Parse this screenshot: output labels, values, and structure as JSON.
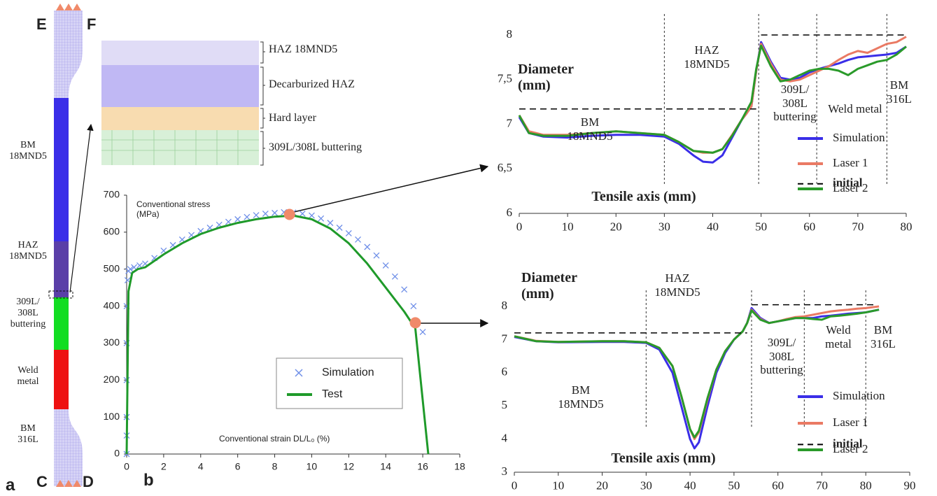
{
  "panel_a": {
    "label": "a",
    "top_left": "E",
    "top_right": "F",
    "bottom_left": "C",
    "bottom_right": "D",
    "zones": [
      "BM 18MND5",
      "HAZ 18MND5",
      "309L/ 308L buttering",
      "Weld metal",
      "BM 316L"
    ],
    "inset_layers": [
      "HAZ 18MND5",
      "Decarburized HAZ",
      "Hard layer",
      "309L/308L buttering"
    ]
  },
  "chart_data": [
    {
      "type": "line",
      "label": "b",
      "y_label": "Conventional stress (MPa)",
      "x_label": "Conventional strain DL/L₀ (%)",
      "xlim": [
        0,
        18
      ],
      "xticks": [
        0,
        2,
        4,
        6,
        8,
        10,
        12,
        14,
        16,
        18
      ],
      "ylim": [
        0,
        700
      ],
      "yticks": [
        0,
        100,
        200,
        300,
        400,
        500,
        600,
        700
      ],
      "legend": "lower center",
      "series": [
        {
          "name": "Simulation",
          "color": "#6f8fe8",
          "mode": "markers",
          "x": [
            0,
            0,
            0,
            0,
            0,
            0,
            0.05,
            0.1,
            0.2,
            0.4,
            0.7,
            1,
            1.5,
            2,
            2.5,
            3,
            3.5,
            4,
            4.5,
            5,
            5.5,
            6,
            6.5,
            7,
            7.5,
            8,
            8.5,
            9,
            9.5,
            10,
            10.5,
            11,
            11.5,
            12,
            12.5,
            13,
            13.5,
            14,
            14.5,
            15,
            15.5,
            16
          ],
          "values": [
            0,
            50,
            100,
            200,
            300,
            400,
            470,
            495,
            500,
            505,
            510,
            515,
            530,
            550,
            565,
            580,
            592,
            603,
            612,
            620,
            628,
            635,
            641,
            646,
            650,
            652,
            654,
            653,
            650,
            645,
            637,
            625,
            612,
            597,
            580,
            560,
            537,
            510,
            480,
            445,
            400,
            330
          ]
        },
        {
          "name": "Test",
          "color": "#1f9a2a",
          "mode": "lines",
          "x": [
            0,
            0.1,
            0.3,
            0.6,
            1,
            2,
            3,
            4,
            5,
            6,
            7,
            8,
            9,
            10,
            11,
            12,
            13,
            14,
            15,
            15.6,
            16.3
          ],
          "values": [
            0,
            440,
            490,
            500,
            505,
            540,
            570,
            595,
            612,
            625,
            635,
            642,
            645,
            635,
            610,
            570,
            515,
            450,
            385,
            340,
            0
          ]
        }
      ],
      "highlights": {
        "color": "#f08a6a",
        "x": [
          8.8,
          15.6
        ],
        "values": [
          648,
          355
        ]
      }
    },
    {
      "type": "line",
      "y_label": "Diameter (mm)",
      "x_label": "Tensile axis (mm)",
      "xlim": [
        0,
        80
      ],
      "xticks": [
        0,
        10,
        20,
        30,
        40,
        50,
        60,
        70,
        80
      ],
      "ylim": [
        6,
        8
      ],
      "yticks": [
        6,
        {
          "value": 6.5,
          "label": "6,5"
        },
        7,
        {
          "value": 7.5,
          "label": "7,5"
        },
        8
      ],
      "region_lines": [
        30,
        49.5,
        61.5,
        76
      ],
      "region_labels": [
        "BM 18MND5",
        "HAZ 18MND5",
        "309L/ 308L buttering",
        "Weld metal",
        "BM 316L"
      ],
      "legend": "lower right",
      "series": [
        {
          "name": "Simulation",
          "color": "#3a2ee8",
          "mode": "lines",
          "x": [
            0,
            2,
            5,
            10,
            15,
            20,
            25,
            30,
            33,
            36,
            38,
            40,
            42,
            44,
            46,
            47,
            48,
            49,
            50,
            52,
            54,
            56,
            58,
            60,
            62,
            64,
            66,
            68,
            70,
            72,
            74,
            76,
            78,
            80
          ],
          "values": [
            7.08,
            6.9,
            6.86,
            6.85,
            6.87,
            6.88,
            6.88,
            6.86,
            6.78,
            6.65,
            6.58,
            6.57,
            6.65,
            6.85,
            7.05,
            7.12,
            7.2,
            7.6,
            7.92,
            7.7,
            7.52,
            7.5,
            7.52,
            7.58,
            7.62,
            7.65,
            7.68,
            7.72,
            7.75,
            7.76,
            7.77,
            7.78,
            7.8,
            7.87
          ]
        },
        {
          "name": "Laser 1",
          "color": "#ea7a64",
          "mode": "lines",
          "x": [
            0,
            2,
            5,
            10,
            15,
            20,
            25,
            30,
            33,
            36,
            38,
            40,
            42,
            44,
            46,
            47,
            48,
            49,
            50,
            52,
            54,
            56,
            58,
            60,
            62,
            64,
            66,
            68,
            70,
            72,
            74,
            76,
            78,
            80
          ],
          "values": [
            7.1,
            6.92,
            6.88,
            6.88,
            6.9,
            6.92,
            6.9,
            6.88,
            6.8,
            6.7,
            6.68,
            6.68,
            6.72,
            6.88,
            7.05,
            7.12,
            7.2,
            7.6,
            7.9,
            7.68,
            7.5,
            7.48,
            7.5,
            7.55,
            7.6,
            7.65,
            7.72,
            7.78,
            7.82,
            7.8,
            7.85,
            7.9,
            7.92,
            7.98
          ]
        },
        {
          "name": "Laser 2",
          "color": "#2a9a2a",
          "mode": "lines",
          "x": [
            0,
            2,
            5,
            10,
            15,
            20,
            25,
            30,
            33,
            36,
            38,
            40,
            42,
            44,
            46,
            47,
            48,
            49,
            50,
            52,
            54,
            56,
            58,
            60,
            62,
            64,
            66,
            68,
            70,
            72,
            74,
            76,
            78,
            80
          ],
          "values": [
            7.1,
            6.9,
            6.87,
            6.87,
            6.9,
            6.92,
            6.9,
            6.88,
            6.8,
            6.7,
            6.69,
            6.68,
            6.72,
            6.87,
            7.05,
            7.15,
            7.25,
            7.62,
            7.88,
            7.65,
            7.48,
            7.5,
            7.55,
            7.6,
            7.62,
            7.62,
            7.6,
            7.55,
            7.62,
            7.66,
            7.7,
            7.72,
            7.78,
            7.87
          ]
        },
        {
          "name": "initial",
          "color": "#000000",
          "mode": "dashed",
          "x": [
            0,
            49,
            49.5,
            50,
            80
          ],
          "values": [
            7.17,
            7.17,
            null,
            8.0,
            8.0
          ]
        }
      ]
    },
    {
      "type": "line",
      "y_label": "Diameter (mm)",
      "x_label": "Tensile axis (mm)",
      "xlim": [
        0,
        90
      ],
      "xticks": [
        0,
        10,
        20,
        30,
        40,
        50,
        60,
        70,
        80,
        90
      ],
      "ylim": [
        3,
        8
      ],
      "yticks": [
        3,
        4,
        5,
        6,
        7,
        8
      ],
      "region_lines": [
        30,
        54,
        66,
        80
      ],
      "region_labels": [
        "BM 18MND5",
        "HAZ 18MND5",
        "309L/ 308L buttering",
        "Weld metal",
        "BM 316L"
      ],
      "legend": "lower right",
      "series": [
        {
          "name": "Simulation",
          "color": "#3a2ee8",
          "mode": "lines",
          "x": [
            0,
            5,
            10,
            20,
            25,
            30,
            33,
            36,
            38,
            40,
            41,
            42,
            44,
            46,
            48,
            50,
            52,
            53,
            54,
            56,
            58,
            60,
            62,
            64,
            66,
            68,
            70,
            72,
            74,
            76,
            78,
            80,
            83
          ],
          "values": [
            7.08,
            6.95,
            6.92,
            6.93,
            6.93,
            6.9,
            6.7,
            6.0,
            5.0,
            4.0,
            3.72,
            3.9,
            5.0,
            6.0,
            6.6,
            7.0,
            7.25,
            7.5,
            7.95,
            7.65,
            7.5,
            7.55,
            7.6,
            7.65,
            7.65,
            7.65,
            7.7,
            7.72,
            7.75,
            7.78,
            7.8,
            7.82,
            7.9
          ]
        },
        {
          "name": "Laser 1",
          "color": "#ea7a64",
          "mode": "lines",
          "x": [
            0,
            5,
            10,
            20,
            25,
            30,
            33,
            36,
            38,
            40,
            41,
            42,
            44,
            46,
            48,
            50,
            52,
            53,
            54,
            56,
            58,
            60,
            62,
            64,
            66,
            68,
            70,
            72,
            74,
            76,
            78,
            80,
            83
          ],
          "values": [
            7.1,
            6.96,
            6.93,
            6.95,
            6.95,
            6.92,
            6.75,
            6.2,
            5.3,
            4.3,
            4.0,
            4.2,
            5.2,
            6.1,
            6.65,
            7.0,
            7.25,
            7.5,
            7.9,
            7.62,
            7.5,
            7.55,
            7.62,
            7.68,
            7.7,
            7.75,
            7.8,
            7.85,
            7.88,
            7.9,
            7.93,
            7.95,
            8.0
          ]
        },
        {
          "name": "Laser 2",
          "color": "#2a9a2a",
          "mode": "lines",
          "x": [
            0,
            5,
            10,
            20,
            25,
            30,
            33,
            36,
            38,
            40,
            41,
            42,
            44,
            46,
            48,
            50,
            52,
            53,
            54,
            56,
            58,
            60,
            62,
            64,
            66,
            68,
            70,
            72,
            74,
            76,
            78,
            80,
            83
          ],
          "values": [
            7.1,
            6.95,
            6.93,
            6.95,
            6.95,
            6.92,
            6.75,
            6.2,
            5.3,
            4.3,
            4.05,
            4.25,
            5.25,
            6.1,
            6.65,
            7.0,
            7.25,
            7.5,
            7.88,
            7.6,
            7.5,
            7.55,
            7.6,
            7.65,
            7.65,
            7.62,
            7.6,
            7.7,
            7.72,
            7.75,
            7.78,
            7.82,
            7.9
          ]
        },
        {
          "name": "initial",
          "color": "#000000",
          "mode": "dashed",
          "x": [
            0,
            53,
            53.5,
            54,
            82
          ],
          "values": [
            7.2,
            7.2,
            null,
            8.05,
            8.05
          ]
        }
      ]
    }
  ]
}
